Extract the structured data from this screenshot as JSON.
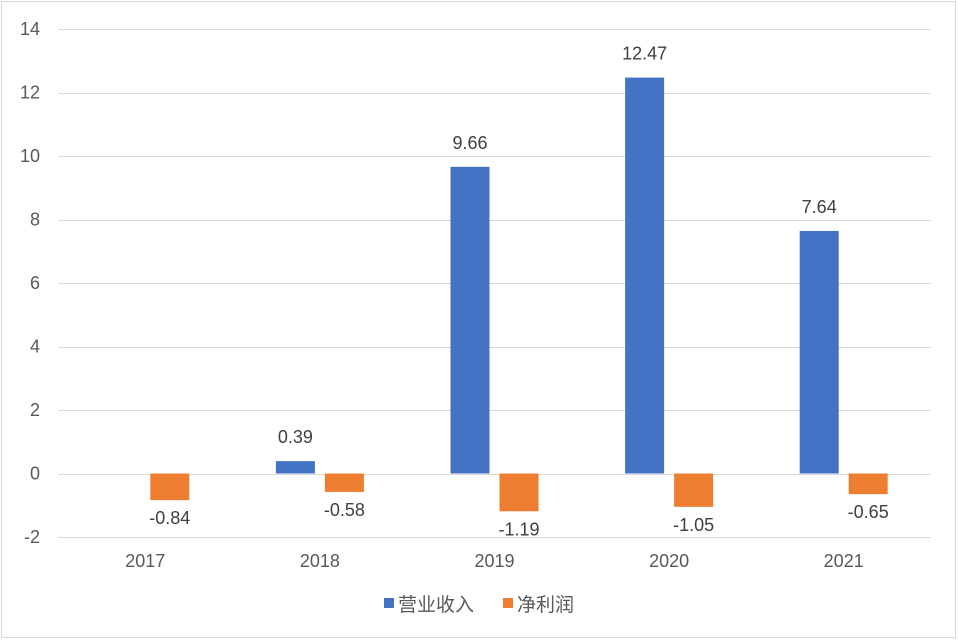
{
  "chart_data": {
    "type": "bar",
    "categories": [
      "2017",
      "2018",
      "2019",
      "2020",
      "2021"
    ],
    "series": [
      {
        "name": "营业收入",
        "color": "#4472C4",
        "values": [
          null,
          0.39,
          9.66,
          12.47,
          7.64
        ]
      },
      {
        "name": "净利润",
        "color": "#ED7D31",
        "values": [
          -0.84,
          -0.58,
          -1.19,
          -1.05,
          -0.65
        ]
      }
    ],
    "data_labels": {
      "营业收入": [
        null,
        "0.39",
        "9.66",
        "12.47",
        "7.64"
      ],
      "净利润": [
        "-0.84",
        "-0.58",
        "-1.19",
        "-1.05",
        "-0.65"
      ]
    },
    "ylim": [
      -2,
      14
    ],
    "yticks": [
      "-2",
      "0",
      "2",
      "4",
      "6",
      "8",
      "10",
      "12",
      "14"
    ],
    "grid": true,
    "legend_position": "bottom"
  }
}
